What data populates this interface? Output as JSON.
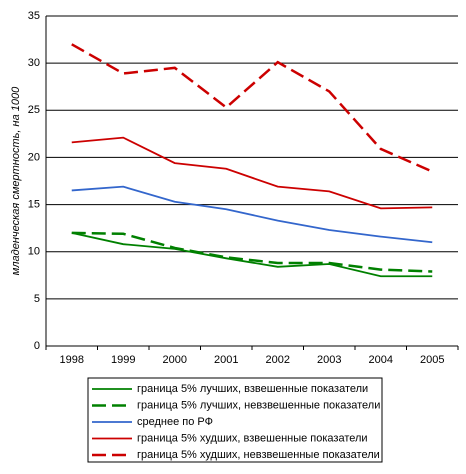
{
  "chart_data": {
    "type": "line",
    "y_label": "младенческая смертность, на 1000",
    "categories": [
      "1998",
      "1999",
      "2000",
      "2001",
      "2002",
      "2003",
      "2004",
      "2005"
    ],
    "ylim": [
      0,
      35
    ],
    "yticks": [
      0,
      5,
      10,
      15,
      20,
      25,
      30,
      35
    ],
    "grid": true,
    "series": [
      {
        "name": "граница 5% лучших, взвешенные показатели",
        "color": "#008000",
        "dash": false,
        "values": [
          12.0,
          10.8,
          10.3,
          9.3,
          8.4,
          8.7,
          7.4,
          7.4
        ]
      },
      {
        "name": "граница 5% лучших, невзвешенные показатели",
        "color": "#008000",
        "dash": true,
        "values": [
          12.0,
          11.9,
          10.4,
          9.4,
          8.8,
          8.8,
          8.1,
          7.9
        ]
      },
      {
        "name": "среднее по РФ",
        "color": "#3366cc",
        "dash": false,
        "values": [
          16.5,
          16.9,
          15.3,
          14.5,
          13.3,
          12.3,
          11.6,
          11.0
        ]
      },
      {
        "name": "граница 5% худших, взвешенные показатели",
        "color": "#cc0000",
        "dash": false,
        "values": [
          21.6,
          22.1,
          19.4,
          18.8,
          16.9,
          16.4,
          14.6,
          14.7
        ]
      },
      {
        "name": "граница 5% худших, невзвешенные показатели",
        "color": "#cc0000",
        "dash": true,
        "values": [
          32.0,
          28.9,
          29.5,
          25.3,
          30.1,
          27.0,
          20.9,
          18.5
        ]
      }
    ]
  }
}
